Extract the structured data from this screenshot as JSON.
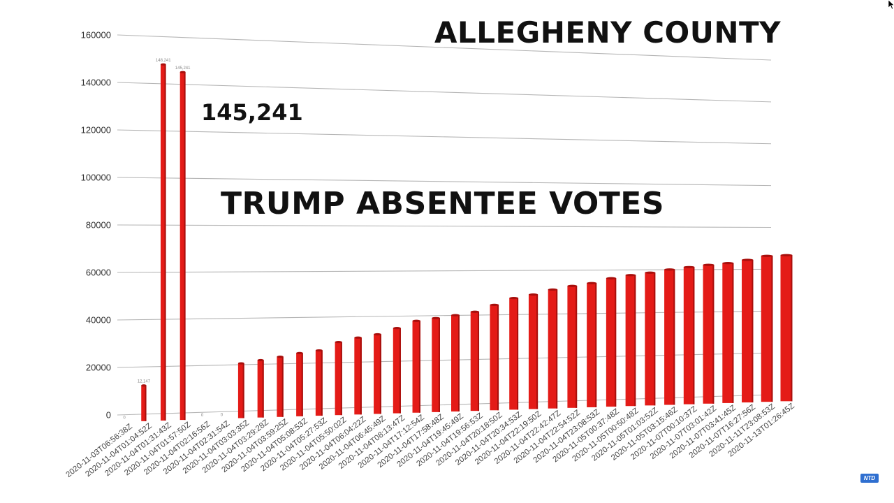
{
  "title": "ALLEGHENY COUNTY",
  "subtitle": "TRUMP ABSENTEE VOTES",
  "peak_annotation": "145,241",
  "logo": "NTD",
  "colors": {
    "bar": "#e41b17",
    "bar_dark": "#a80f0c",
    "grid": "#b5b5b5"
  },
  "chart_data": {
    "type": "bar",
    "title": "ALLEGHENY COUNTY",
    "subtitle": "TRUMP ABSENTEE VOTES",
    "annotation": "145,241",
    "ylim": [
      0,
      160000
    ],
    "yticks": [
      "0",
      "20000",
      "40000",
      "60000",
      "80000",
      "100000",
      "120000",
      "140000",
      "160000"
    ],
    "grid": true,
    "categories": [
      "2020-11-03T06:56:38Z",
      "2020-11-04T01:04:52Z",
      "2020-11-04T01:31:43Z",
      "2020-11-04T01:57:50Z",
      "2020-11-04T02:16:56Z",
      "2020-11-04T02:31:54Z",
      "2020-11-04T03:03:35Z",
      "2020-11-04T03:29:28Z",
      "2020-11-04T03:59:25Z",
      "2020-11-04T05:08:53Z",
      "2020-11-04T05:27:53Z",
      "2020-11-04T05:50:02Z",
      "2020-11-04T06:04:22Z",
      "2020-11-04T06:45:49Z",
      "2020-11-04T08:13:47Z",
      "2020-11-04T17:12:54Z",
      "2020-11-04T17:58:48Z",
      "2020-11-04T19:45:49Z",
      "2020-11-04T19:56:53Z",
      "2020-11-04T20:18:50Z",
      "2020-11-04T20:34:53Z",
      "2020-11-04T22:19:50Z",
      "2020-11-04T22:42:47Z",
      "2020-11-04T22:54:52Z",
      "2020-11-04T23:08:53Z",
      "2020-11-05T00:37:48Z",
      "2020-11-05T00:50:48Z",
      "2020-11-05T01:03:52Z",
      "2020-11-05T03:15:46Z",
      "2020-11-07T00:10:37Z",
      "2020-11-07T03:01:42Z",
      "2020-11-07T03:41:45Z",
      "2020-11-07T16:27:56Z",
      "2020-11-11T23:08:53Z",
      "2020-11-13T01:26:45Z"
    ],
    "values": [
      0,
      12147,
      148241,
      145241,
      0,
      0,
      20600,
      21800,
      23100,
      24500,
      25500,
      29000,
      30800,
      32100,
      34700,
      37800,
      38900,
      40100,
      41500,
      44500,
      47500,
      49000,
      51200,
      52800,
      54000,
      56200,
      57600,
      58700,
      60100,
      61200,
      62200,
      63000,
      64500,
      66400,
      66700
    ],
    "data_labels": [
      "0",
      "12,147",
      "148,241",
      "145,241",
      "0",
      "0",
      "",
      "",
      "",
      "",
      "",
      "",
      "",
      "",
      "",
      "",
      "",
      "",
      "",
      "",
      "",
      "",
      "",
      "",
      "",
      "",
      "",
      "",
      "",
      "",
      "",
      "",
      "",
      "",
      ""
    ]
  }
}
